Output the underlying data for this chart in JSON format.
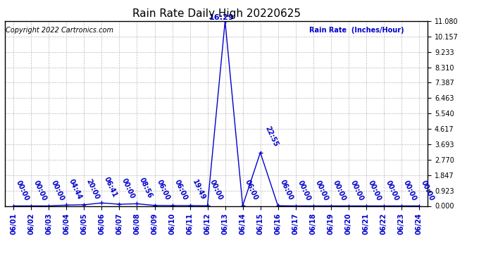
{
  "title": "Rain Rate Daily High 20220625",
  "copyright": "Copyright 2022 Cartronics.com",
  "legend_label": "Rain Rate  (Inches/Hour)",
  "x_dates": [
    "06/01",
    "06/02",
    "06/03",
    "06/04",
    "06/05",
    "06/06",
    "06/07",
    "06/08",
    "06/09",
    "06/10",
    "06/11",
    "06/12",
    "06/13",
    "06/14",
    "06/15",
    "06/16",
    "06/17",
    "06/18",
    "06/19",
    "06/20",
    "06/21",
    "06/22",
    "06/23",
    "06/24"
  ],
  "x_indices": [
    0,
    1,
    2,
    3,
    4,
    5,
    6,
    7,
    8,
    9,
    10,
    11,
    12,
    13,
    14,
    15,
    16,
    17,
    18,
    19,
    20,
    21,
    22,
    23
  ],
  "peak1_xi": 12,
  "peak1_yi": 11.08,
  "peak1_label": "16:29",
  "peak2_xi": 14,
  "peak2_yi": 3.2,
  "peak2_label": "22:55",
  "data_points": [
    {
      "xi": 0,
      "yi": 0.0,
      "label": "00:00"
    },
    {
      "xi": 1,
      "yi": 0.0,
      "label": "00:00"
    },
    {
      "xi": 2,
      "yi": 0.0,
      "label": "00:00"
    },
    {
      "xi": 3,
      "yi": 0.05,
      "label": "04:44"
    },
    {
      "xi": 4,
      "yi": 0.07,
      "label": "20:00"
    },
    {
      "xi": 5,
      "yi": 0.18,
      "label": "06:41"
    },
    {
      "xi": 6,
      "yi": 0.1,
      "label": "00:00"
    },
    {
      "xi": 7,
      "yi": 0.13,
      "label": "08:56"
    },
    {
      "xi": 8,
      "yi": 0.03,
      "label": "06:00"
    },
    {
      "xi": 9,
      "yi": 0.02,
      "label": "06:00"
    },
    {
      "xi": 10,
      "yi": 0.02,
      "label": "19:49"
    },
    {
      "xi": 11,
      "yi": 0.01,
      "label": "00:00"
    },
    {
      "xi": 12,
      "yi": 11.08,
      "label": "16:29"
    },
    {
      "xi": 13,
      "yi": 0.01,
      "label": "06:00"
    },
    {
      "xi": 14,
      "yi": 3.2,
      "label": "22:55"
    },
    {
      "xi": 15,
      "yi": 0.01,
      "label": "06:00"
    },
    {
      "xi": 16,
      "yi": 0.0,
      "label": "00:00"
    },
    {
      "xi": 17,
      "yi": 0.0,
      "label": "00:00"
    },
    {
      "xi": 18,
      "yi": 0.0,
      "label": "00:00"
    },
    {
      "xi": 19,
      "yi": 0.0,
      "label": "00:00"
    },
    {
      "xi": 20,
      "yi": 0.0,
      "label": "00:00"
    },
    {
      "xi": 21,
      "yi": 0.0,
      "label": "00:00"
    },
    {
      "xi": 22,
      "yi": 0.0,
      "label": "00:00"
    },
    {
      "xi": 23,
      "yi": 0.0,
      "label": "00:00"
    }
  ],
  "ylim": [
    0.0,
    11.08
  ],
  "yticks": [
    0.0,
    0.923,
    1.847,
    2.77,
    3.693,
    4.617,
    5.54,
    6.463,
    7.387,
    8.31,
    9.233,
    10.157,
    11.08
  ],
  "line_color": "#0000cc",
  "marker_color": "#0000cc",
  "grid_color": "#aaaaaa",
  "title_color": "#000000",
  "label_color": "#0000cc",
  "background_color": "#ffffff",
  "border_color": "#000000",
  "title_fontsize": 11,
  "annot_fontsize": 7,
  "tick_fontsize": 7,
  "copyright_fontsize": 7,
  "legend_fontsize": 7
}
